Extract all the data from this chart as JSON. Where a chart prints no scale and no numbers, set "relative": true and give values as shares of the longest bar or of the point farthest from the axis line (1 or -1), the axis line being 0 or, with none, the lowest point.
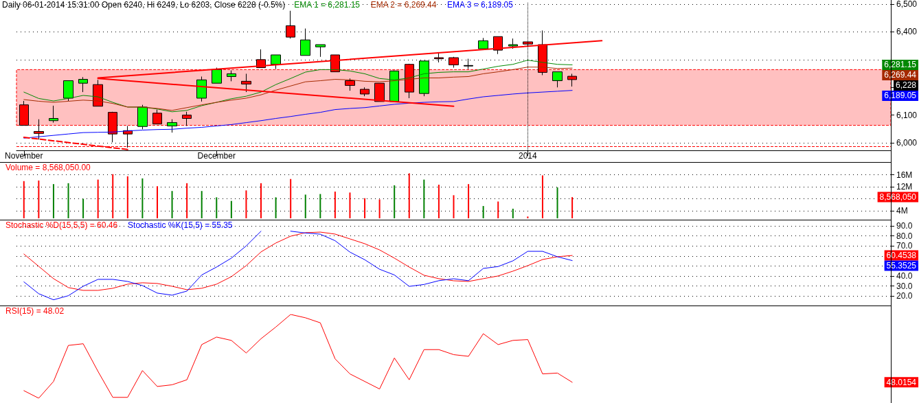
{
  "chart_data": [
    {
      "type": "candlestick",
      "title": "Daily 06-01-2014 15:31:00 Open 6240, Hi 6249, Lo 6203, Close 6228 (-0.5%)",
      "categories": [
        "November",
        null,
        null,
        null,
        null,
        null,
        null,
        null,
        null,
        null,
        null,
        null,
        null,
        "December",
        null,
        null,
        null,
        null,
        null,
        null,
        null,
        null,
        null,
        null,
        null,
        null,
        null,
        null,
        null,
        null,
        null,
        null,
        null,
        null,
        "2014",
        null,
        null,
        null,
        null,
        null,
        null,
        null,
        null,
        null,
        null,
        null,
        null,
        null,
        null,
        null,
        null,
        null,
        null,
        null,
        null,
        null,
        null,
        null,
        null
      ],
      "ohlc": [
        [
          6137,
          6151,
          6063,
          6063
        ],
        [
          6041,
          6085,
          6012,
          6034
        ],
        [
          6080,
          6134,
          6073,
          6088
        ],
        [
          6161,
          6224,
          6151,
          6224
        ],
        [
          6215,
          6237,
          6183,
          6229
        ],
        [
          6210,
          6227,
          6132,
          6132
        ],
        [
          6110,
          6112,
          6002,
          6032
        ],
        [
          6044,
          6061,
          5983,
          6032
        ],
        [
          6059,
          6137,
          6049,
          6129
        ],
        [
          6107,
          6120,
          6068,
          6068
        ],
        [
          6061,
          6085,
          6037,
          6073
        ],
        [
          6100,
          6112,
          6061,
          6088
        ],
        [
          6161,
          6239,
          6149,
          6227
        ],
        [
          6215,
          6271,
          6215,
          6264
        ],
        [
          6239,
          6261,
          6222,
          6249
        ],
        [
          6222,
          6249,
          6183,
          6212
        ],
        [
          6300,
          6337,
          6271,
          6271
        ],
        [
          6283,
          6317,
          6266,
          6317
        ],
        [
          6422,
          6476,
          6376,
          6381
        ],
        [
          6315,
          6412,
          6315,
          6371
        ],
        [
          6346,
          6354,
          6310,
          6354
        ],
        [
          6317,
          6317,
          6256,
          6256
        ],
        [
          6224,
          6232,
          6188,
          6207
        ],
        [
          6193,
          6200,
          6168,
          6176
        ],
        [
          6215,
          6215,
          6149,
          6149
        ],
        [
          6149,
          6261,
          6149,
          6259
        ],
        [
          6283,
          6285,
          6161,
          6183
        ],
        [
          6178,
          6295,
          6168,
          6295
        ],
        [
          6307,
          6327,
          6290,
          6303
        ],
        [
          6307,
          6310,
          6271,
          6281
        ],
        [
          6279,
          6303,
          6266,
          6277
        ],
        [
          6339,
          6378,
          6339,
          6368
        ],
        [
          6383,
          6383,
          6320,
          6334
        ],
        [
          6349,
          6376,
          6339,
          6354
        ],
        [
          6364,
          6364,
          6349,
          6356
        ],
        [
          6354,
          6405,
          6244,
          6254
        ],
        [
          6224,
          6256,
          6200,
          6256
        ],
        [
          6240,
          6249,
          6203,
          6228
        ],
        null,
        null,
        null,
        null,
        null,
        null,
        null,
        null,
        null,
        null,
        null,
        null,
        null,
        null,
        null,
        null,
        null,
        null,
        null,
        null,
        null
      ],
      "colors": [
        "#ff0000",
        "#ff0000",
        "#00ff00",
        "#00ff00",
        "#00ff00",
        "#ff0000",
        "#ff0000",
        "#ff0000",
        "#00ff00",
        "#ff0000",
        "#00ff00",
        "#ff0000",
        "#00ff00",
        "#00ff00",
        "#00ff00",
        "#ff0000",
        "#ff0000",
        "#00ff00",
        "#ff0000",
        "#00ff00",
        "#00ff00",
        "#ff0000",
        "#ff0000",
        "#ff0000",
        "#ff0000",
        "#00ff00",
        "#ff0000",
        "#00ff00",
        "#ff0000",
        "#ff0000",
        "#000000",
        "#00ff00",
        "#ff0000",
        "#00ff00",
        "#ff0000",
        "#ff0000",
        "#00ff00",
        "#ff0000",
        null,
        null,
        null,
        null,
        null,
        null,
        null,
        null,
        null,
        null,
        null,
        null,
        null,
        null,
        null,
        null,
        null,
        null,
        null,
        null,
        null
      ],
      "series": [
        {
          "type": "line",
          "name": "EMA 1 = 6,281.15",
          "color": "#008800",
          "values": [
            6183,
            6160,
            6151,
            6160,
            6171,
            6166,
            6146,
            6129,
            6129,
            6122,
            6112,
            6117,
            6134,
            6146,
            6159,
            6168,
            6183,
            6210,
            6232,
            6255,
            6264,
            6264,
            6259,
            6249,
            6232,
            6227,
            6234,
            6249,
            6254,
            6256,
            6256,
            6266,
            6276,
            6283,
            6298,
            6290,
            6283,
            6281.15,
            null,
            null,
            null,
            null,
            null,
            null,
            null,
            null,
            null,
            null,
            null,
            null,
            null,
            null,
            null,
            null,
            null,
            null,
            null,
            null,
            null
          ]
        },
        {
          "type": "line",
          "name": "EMA 2 = 6,269.44",
          "color": "#a52a00",
          "values": [
            6156,
            6150,
            6146,
            6150,
            6154,
            6151,
            6142,
            6129,
            6129,
            6124,
            6117,
            6127,
            6137,
            6146,
            6154,
            6161,
            6173,
            6190,
            6205,
            6220,
            6224,
            6229,
            6227,
            6222,
            6220,
            6224,
            6229,
            6234,
            6234,
            6237,
            6239,
            6249,
            6256,
            6264,
            6273,
            6273,
            6268,
            6269.44,
            null,
            null,
            null,
            null,
            null,
            null,
            null,
            null,
            null,
            null,
            null,
            null,
            null,
            null,
            null,
            null,
            null,
            null,
            null,
            null,
            null
          ]
        },
        {
          "type": "line",
          "name": "EMA 3 = 6,189.05",
          "color": "#0000ff",
          "values": [
            6017,
            6022,
            6027,
            6032,
            6037,
            6038,
            6039,
            6043,
            6046,
            6048,
            6049,
            6053,
            6056,
            6061,
            6066,
            6073,
            6080,
            6088,
            6095,
            6103,
            6110,
            6120,
            6124,
            6127,
            6133,
            6139,
            6143,
            6146,
            6148,
            6149,
            6158,
            6166,
            6171,
            6176,
            6180,
            6183,
            6186,
            6189.05,
            null,
            null,
            null,
            null,
            null,
            null,
            null,
            null,
            null,
            null,
            null,
            null,
            null,
            null,
            null,
            null,
            null,
            null,
            null,
            null,
            null
          ]
        },
        {
          "type": "line",
          "color": "#ff0000",
          "values": [
            null,
            null,
            null,
            null,
            null,
            6234,
            null,
            null,
            null,
            null,
            null,
            null,
            null,
            null,
            null,
            null,
            null,
            null,
            null,
            null,
            null,
            null,
            null,
            null,
            null,
            null,
            null,
            null,
            null,
            null,
            null,
            null,
            null,
            null,
            null,
            null,
            null,
            null,
            null,
            6368,
            null,
            null,
            null,
            null,
            null,
            null,
            null,
            null,
            null,
            null,
            null,
            null,
            null,
            null,
            null,
            null,
            null,
            null,
            null
          ]
        },
        {
          "type": "line",
          "color": "#ff0000",
          "values": [
            null,
            null,
            null,
            null,
            null,
            6232,
            null,
            null,
            null,
            null,
            null,
            null,
            null,
            null,
            null,
            null,
            null,
            null,
            null,
            null,
            null,
            null,
            null,
            null,
            null,
            null,
            null,
            null,
            null,
            6132,
            null,
            null,
            null,
            null,
            null,
            null,
            null,
            null,
            null,
            null,
            null,
            null,
            null,
            null,
            null,
            null,
            null,
            null,
            null,
            null,
            null,
            null,
            null,
            null,
            null,
            null,
            null,
            null,
            null
          ]
        },
        {
          "type": "line",
          "color": "#ff0000",
          "line_style": "dashed",
          "values": [
            6020,
            null,
            null,
            null,
            null,
            null,
            null,
            5976,
            null,
            null,
            null,
            null,
            null,
            null,
            null,
            null,
            null,
            null,
            null,
            null,
            null,
            null,
            null,
            null,
            null,
            null,
            null,
            null,
            null,
            null,
            null,
            null,
            null,
            null,
            null,
            null,
            null,
            null,
            null,
            null,
            null,
            null,
            null,
            null,
            null,
            null,
            null,
            null,
            null,
            null,
            null,
            null,
            null,
            null,
            null,
            null,
            null,
            null,
            null
          ]
        }
      ],
      "ylim": [
        5973,
        6507
      ],
      "yticks": [
        {
          "value": 6000,
          "label": "6,000"
        },
        {
          "value": 6100,
          "label": "6,100"
        },
        {
          "value": 6200,
          "label": null
        },
        {
          "value": 6300,
          "label": null
        },
        {
          "value": 6400,
          "label": "6,400"
        },
        {
          "value": 6500,
          "label": "6,500"
        }
      ],
      "grid": "y",
      "legend": "top left",
      "marker": "none",
      "line_style": "solid",
      "annotations": [
        "6,281.15",
        "6,269.44",
        "6,228",
        "6,189.05"
      ],
      "ref_lines": [
        {
          "axis": "y",
          "value": 5988,
          "color": "#ff0000",
          "line_style": "dashed"
        },
        {
          "axis": "x",
          "value": "2014",
          "color": "#000000",
          "line_style": "dotted"
        }
      ],
      "bands": [
        {
          "axis": "y",
          "from": 6063,
          "to": 6264,
          "color": "#ffc0c0"
        }
      ]
    },
    {
      "type": "bar",
      "categories": [
        null,
        null,
        null,
        null,
        null,
        null,
        null,
        null,
        null,
        null,
        null,
        null,
        null,
        null,
        null,
        null,
        null,
        null,
        null,
        null,
        null,
        null,
        null,
        null,
        null,
        null,
        null,
        null,
        null,
        null,
        null,
        null,
        null,
        null,
        null,
        null,
        null,
        null,
        null,
        null,
        null,
        null,
        null,
        null,
        null,
        null,
        null,
        null,
        null,
        null,
        null,
        null,
        null,
        null,
        null,
        null,
        null,
        null,
        null
      ],
      "series": [
        {
          "name": "Volume = 8,568,050.00",
          "color": "#ff0000",
          "values": [
            13.9,
            14.1,
            12.9,
            13.2,
            8.0,
            14.4,
            16.2,
            15.5,
            14.8,
            12.2,
            10.6,
            13.2,
            10.6,
            8.5,
            7.3,
            10.8,
            13.2,
            8.5,
            14.6,
            9.4,
            9.6,
            10.4,
            10.1,
            8.2,
            7.8,
            12.5,
            16.5,
            14.4,
            12.7,
            9.2,
            12.9,
            5.6,
            7.1,
            4.7,
            2.1,
            15.8,
            11.8,
            8.56805,
            null,
            null,
            null,
            null,
            null,
            null,
            null,
            null,
            null,
            null,
            null,
            null,
            null,
            null,
            null,
            null,
            null,
            null,
            null,
            null,
            null
          ],
          "colors": [
            "#ff0000",
            "#ff0000",
            "#008000",
            "#008000",
            "#008000",
            "#ff0000",
            "#ff0000",
            "#ff0000",
            "#008000",
            "#ff0000",
            "#008000",
            "#ff0000",
            "#008000",
            "#008000",
            "#008000",
            "#ff0000",
            "#ff0000",
            "#008000",
            "#ff0000",
            "#008000",
            "#008000",
            "#ff0000",
            "#ff0000",
            "#ff0000",
            "#ff0000",
            "#008000",
            "#ff0000",
            "#008000",
            "#ff0000",
            "#ff0000",
            "#ff0000",
            "#008000",
            "#ff0000",
            "#008000",
            "#ff0000",
            "#ff0000",
            "#008000",
            "#ff0000",
            null,
            null,
            null,
            null,
            null,
            null,
            null,
            null,
            null,
            null,
            null,
            null,
            null,
            null,
            null,
            null,
            null,
            null,
            null,
            null,
            null
          ]
        }
      ],
      "ylim": [
        1.5,
        19.8
      ],
      "yticks": [
        {
          "value": 4,
          "label": "4M"
        },
        {
          "value": 8,
          "label": null
        },
        {
          "value": 12,
          "label": "12M"
        },
        {
          "value": 16,
          "label": "16M"
        }
      ],
      "grid": "y",
      "legend": "top left",
      "tick_labels": "y",
      "annotations": [
        "8,568,050"
      ]
    },
    {
      "type": "line",
      "categories": [
        null,
        null,
        null,
        null,
        null,
        null,
        null,
        null,
        null,
        null,
        null,
        null,
        null,
        null,
        null,
        null,
        null,
        null,
        null,
        null,
        null,
        null,
        null,
        null,
        null,
        null,
        null,
        null,
        null,
        null,
        null,
        null,
        null,
        null,
        null,
        null,
        null,
        null,
        null,
        null,
        null,
        null,
        null,
        null,
        null,
        null,
        null,
        null,
        null,
        null,
        null,
        null,
        null,
        null,
        null,
        null,
        null,
        null,
        null
      ],
      "series": [
        {
          "name": "Stochastic %D(15,5,5) = 60.46",
          "color": "#ff0000",
          "values": [
            61.9,
            49.6,
            37.3,
            28.4,
            25.6,
            25.6,
            27.7,
            31.8,
            33.2,
            32.5,
            29.7,
            26.3,
            27.7,
            31.8,
            39.3,
            50.3,
            64,
            72.9,
            79.7,
            83.2,
            83.8,
            81.8,
            77,
            72.2,
            66,
            57.8,
            48.9,
            40.7,
            37.3,
            35.2,
            34.5,
            37.3,
            40,
            44.8,
            50.3,
            56.4,
            59.2,
            60.4538,
            null,
            null,
            null,
            null,
            null,
            null,
            null,
            null,
            null,
            null,
            null,
            null,
            null,
            null,
            null,
            null,
            null,
            null,
            null,
            null,
            null
          ]
        },
        {
          "name": "Stochastic %K(15,5) = 55.35",
          "color": "#0000ff",
          "values": [
            34.1,
            22.3,
            16.2,
            20.3,
            29.7,
            36.6,
            36.6,
            34.5,
            30.4,
            22.9,
            20.8,
            24.9,
            41,
            48.9,
            57.8,
            70,
            84.7,
            null,
            84.7,
            82.9,
            81.7,
            75.2,
            63.8,
            56.2,
            46.7,
            41,
            29.6,
            31.5,
            35.3,
            37.2,
            35.3,
            47.5,
            49.4,
            55.1,
            64.6,
            64.6,
            59.2,
            55.3525,
            null,
            null,
            null,
            null,
            null,
            null,
            null,
            null,
            null,
            null,
            null,
            null,
            null,
            null,
            null,
            null,
            null,
            null,
            null,
            null,
            null
          ]
        }
      ],
      "ylim": [
        10.5,
        94.8
      ],
      "yticks": [
        {
          "value": 20,
          "label": "20.0"
        },
        {
          "value": 30,
          "label": "30.0"
        },
        {
          "value": 40,
          "label": "40.0"
        },
        {
          "value": 50,
          "label": null
        },
        {
          "value": 60,
          "label": null
        },
        {
          "value": 70,
          "label": "70.0"
        },
        {
          "value": 80,
          "label": "80.0"
        },
        {
          "value": 90,
          "label": "90.0"
        }
      ],
      "grid": "y",
      "legend": "top left",
      "tick_labels": "y",
      "marker": "none",
      "line_style": "solid",
      "annotations": [
        "60.4538",
        "55.3525"
      ]
    },
    {
      "type": "line",
      "relative": true,
      "categories": [
        null,
        null,
        null,
        null,
        null,
        null,
        null,
        null,
        null,
        null,
        null,
        null,
        null,
        null,
        null,
        null,
        null,
        null,
        null,
        null,
        null,
        null,
        null,
        null,
        null,
        null,
        null,
        null,
        null,
        null,
        null,
        null,
        null,
        null,
        null,
        null,
        null,
        null,
        null,
        null,
        null,
        null,
        null,
        null,
        null,
        null,
        null,
        null,
        null,
        null,
        null,
        null,
        null,
        null,
        null,
        null,
        null,
        null,
        null
      ],
      "series": [
        {
          "name": "RSI(15) = 48.02",
          "color": "#ff0000",
          "values": [
            0.09,
            0,
            0.2,
            0.63,
            0.65,
            0.32,
            0.01,
            0.01,
            0.33,
            0.14,
            0.16,
            0.22,
            0.64,
            0.73,
            0.69,
            0.54,
            0.71,
            0.85,
            1,
            0.96,
            0.9,
            0.47,
            0.29,
            0.2,
            0.11,
            0.48,
            0.22,
            0.58,
            0.58,
            0.52,
            0.5,
            0.77,
            0.64,
            0.69,
            0.7,
            0.29,
            0.3,
            0.19,
            null,
            null,
            null,
            null,
            null,
            null,
            null,
            null,
            null,
            null,
            null,
            null,
            null,
            null,
            null,
            null,
            null,
            null,
            null,
            null,
            null
          ]
        }
      ],
      "legend": "top left",
      "tick_labels": false,
      "marker": "none",
      "line_style": "solid",
      "annotations": [
        "48.0154"
      ]
    }
  ]
}
